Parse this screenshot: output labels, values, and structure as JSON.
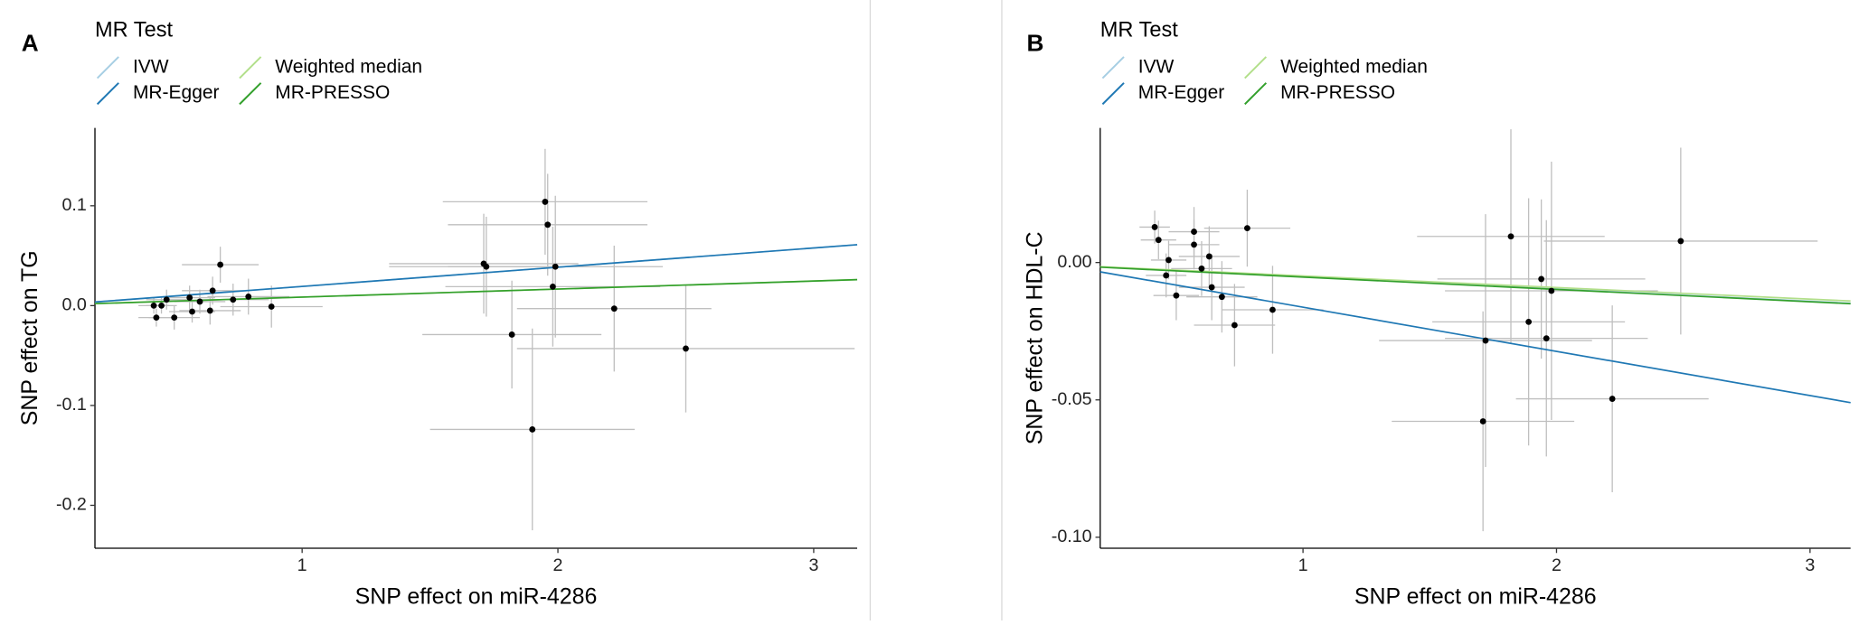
{
  "chart_data": [
    {
      "type": "scatter",
      "panel": "A",
      "legend_title": "MR Test",
      "xlabel": "SNP effect on miR-4286",
      "ylabel": "SNP effect on TG",
      "xlim": [
        0.19,
        3.17
      ],
      "ylim": [
        -0.243,
        0.178
      ],
      "xticks": [
        1,
        2,
        3
      ],
      "yticks": [
        -0.2,
        -0.1,
        {
          "value": 0,
          "label": "0.0"
        },
        0.1
      ],
      "color": "#000000",
      "errorbar_color": "#bfbfbf",
      "x": [
        0.42,
        0.43,
        0.45,
        0.47,
        0.5,
        0.56,
        0.57,
        0.6,
        0.64,
        0.65,
        0.68,
        0.73,
        0.79,
        0.88,
        1.71,
        1.72,
        1.82,
        1.9,
        1.95,
        1.96,
        1.98,
        1.99,
        2.22,
        2.5
      ],
      "values": [
        0.0,
        -0.012,
        0.0,
        0.006,
        -0.012,
        0.008,
        -0.006,
        0.004,
        -0.005,
        0.015,
        0.041,
        0.006,
        0.009,
        -0.001,
        0.042,
        0.039,
        -0.029,
        -0.124,
        0.104,
        0.081,
        0.019,
        0.039,
        -0.003,
        -0.043
      ],
      "xerr": [
        0.06,
        0.07,
        0.06,
        0.08,
        0.1,
        0.1,
        0.09,
        0.1,
        0.12,
        0.12,
        0.15,
        0.14,
        0.16,
        0.2,
        0.37,
        0.38,
        0.35,
        0.4,
        0.4,
        0.39,
        0.42,
        0.42,
        0.38,
        0.66
      ],
      "yerr": [
        0.008,
        0.009,
        0.008,
        0.01,
        0.012,
        0.012,
        0.011,
        0.012,
        0.014,
        0.014,
        0.018,
        0.016,
        0.018,
        0.021,
        0.05,
        0.05,
        0.054,
        0.101,
        0.053,
        0.051,
        0.06,
        0.071,
        0.063,
        0.064
      ],
      "lines": [
        {
          "name": "IVW",
          "color": "#a6cee3",
          "x": [
            0.19,
            3.17
          ],
          "values": [
            0.0037,
            0.061
          ]
        },
        {
          "name": "MR-Egger",
          "color": "#1f78b4",
          "x": [
            0.19,
            3.17
          ],
          "values": [
            0.0036,
            0.061
          ]
        },
        {
          "name": "Weighted median",
          "color": "#b2df8a",
          "x": [
            0.19,
            3.17
          ],
          "values": [
            0.002,
            0.026
          ]
        },
        {
          "name": "MR-PRESSO",
          "color": "#33a02c",
          "x": [
            0.19,
            3.17
          ],
          "values": [
            0.002,
            0.026
          ]
        }
      ]
    },
    {
      "type": "scatter",
      "panel": "B",
      "legend_title": "MR Test",
      "xlabel": "SNP effect on miR-4286",
      "ylabel": "SNP effect on HDL-C",
      "xlim": [
        0.2,
        3.16
      ],
      "ylim": [
        -0.104,
        0.049
      ],
      "xticks": [
        1,
        2,
        3
      ],
      "yticks": [
        {
          "value": -0.1,
          "label": "-0.10"
        },
        -0.05,
        {
          "value": 0,
          "label": "0.00"
        }
      ],
      "color": "#000000",
      "errorbar_color": "#bfbfbf",
      "x": [
        0.415,
        0.43,
        0.46,
        0.47,
        0.5,
        0.57,
        0.57,
        0.6,
        0.63,
        0.64,
        0.68,
        0.73,
        0.78,
        0.88,
        1.71,
        1.72,
        1.82,
        1.89,
        1.94,
        1.96,
        1.98,
        2.22,
        2.49
      ],
      "values": [
        0.0129,
        0.0082,
        -0.0047,
        0.0009,
        -0.012,
        0.0112,
        0.0065,
        -0.0022,
        0.0022,
        -0.009,
        -0.0125,
        -0.0228,
        0.0125,
        -0.0172,
        -0.0578,
        -0.0284,
        0.0095,
        -0.0216,
        -0.006,
        -0.0276,
        -0.0103,
        -0.0496,
        0.0078
      ],
      "xerr": [
        0.06,
        0.07,
        0.08,
        0.07,
        0.09,
        0.1,
        0.1,
        0.12,
        0.12,
        0.13,
        0.14,
        0.16,
        0.17,
        0.2,
        0.36,
        0.42,
        0.37,
        0.38,
        0.41,
        0.4,
        0.42,
        0.38,
        0.54
      ],
      "yerr": [
        0.006,
        0.007,
        0.008,
        0.007,
        0.009,
        0.009,
        0.009,
        0.01,
        0.011,
        0.012,
        0.013,
        0.015,
        0.014,
        0.016,
        0.04,
        0.046,
        0.039,
        0.045,
        0.029,
        0.043,
        0.047,
        0.034,
        0.034
      ],
      "lines": [
        {
          "name": "IVW",
          "color": "#a6cee3",
          "x": [
            0.2,
            3.16
          ],
          "values": [
            -0.0016,
            -0.0148
          ]
        },
        {
          "name": "MR-Egger",
          "color": "#1f78b4",
          "x": [
            0.2,
            3.16
          ],
          "values": [
            -0.0034,
            -0.051
          ]
        },
        {
          "name": "Weighted median",
          "color": "#b2df8a",
          "x": [
            0.2,
            3.16
          ],
          "values": [
            -0.0015,
            -0.014
          ]
        },
        {
          "name": "MR-PRESSO",
          "color": "#33a02c",
          "x": [
            0.2,
            3.16
          ],
          "values": [
            -0.0017,
            -0.015
          ]
        }
      ]
    }
  ]
}
